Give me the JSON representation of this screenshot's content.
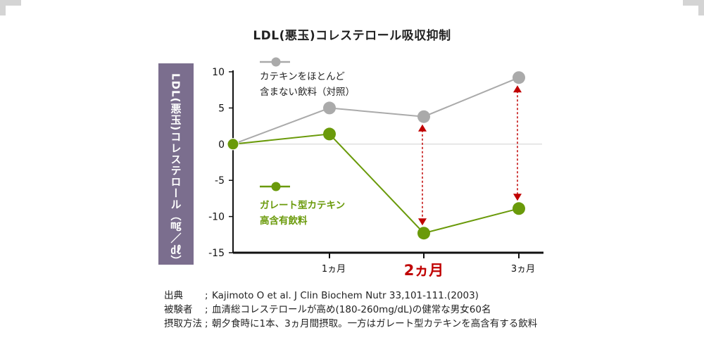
{
  "title": "LDL(悪玉)コレステロール吸収抑制",
  "chart_data": {
    "type": "line",
    "title": "LDL(悪玉)コレステロール吸収抑制",
    "ylabel": "LDL(悪玉)コレステロール（㎎／㎗）",
    "xlabel": "",
    "ylim": [
      -15,
      10
    ],
    "yticks": [
      10,
      5,
      0,
      -5,
      -10,
      -15
    ],
    "categories": [
      "",
      "1ヵ月",
      "2ヵ月",
      "3ヵ月"
    ],
    "x_highlight": "2ヵ月",
    "series": [
      {
        "name": "カテキンをほとんど含まない飲料（対照）",
        "legend_lines": [
          "カテキンをほとんど",
          "含まない飲料（対照）"
        ],
        "color": "#aaaaaa",
        "values": [
          0,
          5,
          3.8,
          9.2
        ]
      },
      {
        "name": "ガレート型カテキン高含有飲料",
        "legend_lines": [
          "ガレート型カテキン",
          "高含有飲料"
        ],
        "color": "#6a9a0a",
        "values": [
          0,
          1.4,
          -12.3,
          -8.9
        ]
      }
    ],
    "arrow_color": "#c00000",
    "grid": false
  },
  "source": [
    {
      "label": "出典",
      "text": "Kajimoto O et al. J Clin Biochem Nutr 33,101-111.(2003)"
    },
    {
      "label": "被験者",
      "text": "血清総コレステロールが高め(180-260mg/dL)の健常な男女60名"
    },
    {
      "label": "摂取方法",
      "text": "朝夕食時に1本、3ヵ月間摂取。一方はガレート型カテキンを高含有する飲料"
    }
  ]
}
